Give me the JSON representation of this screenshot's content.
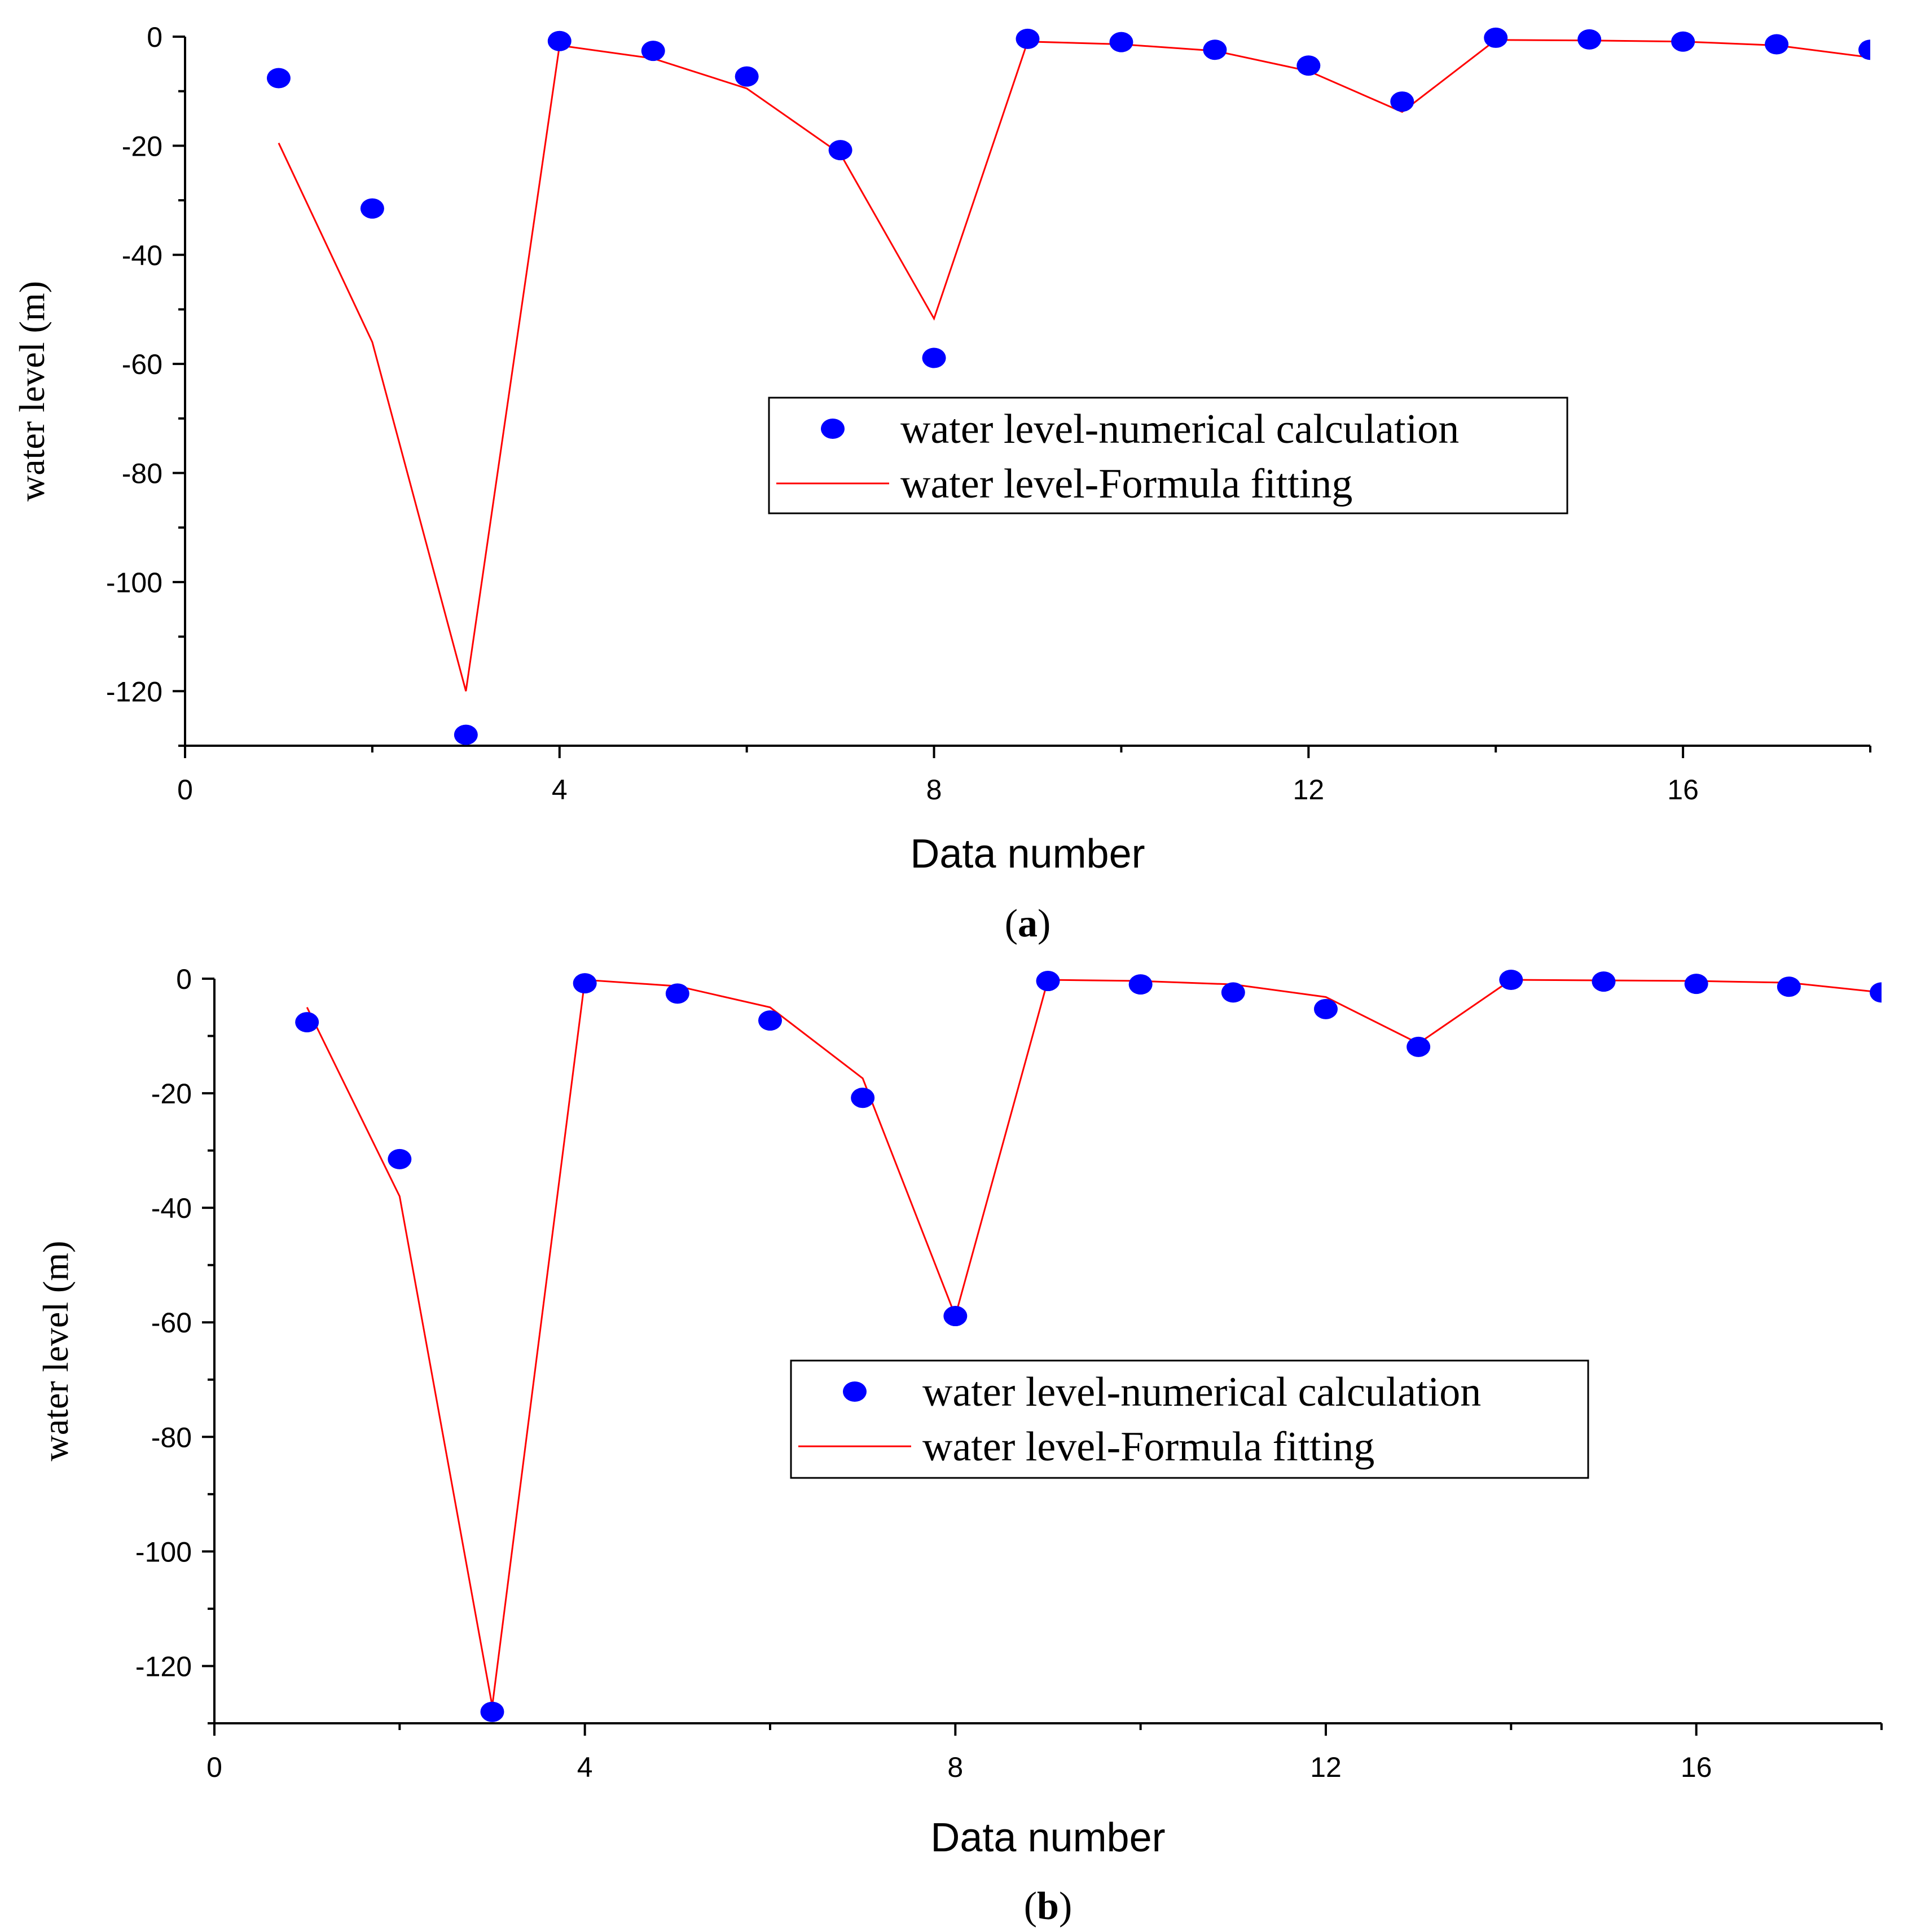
{
  "colors": {
    "points": "#0000ff",
    "line": "#ff0000",
    "axes": "#000000"
  },
  "chart_data": [
    {
      "type": "scatter",
      "panel": "a",
      "xlabel": "Data number",
      "ylabel": "water level (m)",
      "xlim": [
        0,
        18
      ],
      "ylim": [
        -130,
        0
      ],
      "xticks": [
        "0",
        "4",
        "8",
        "12",
        "16"
      ],
      "yticks": [
        "0",
        "-20",
        "-40",
        "-60",
        "-80",
        "-100",
        "-120"
      ],
      "legend": {
        "placement": "center-right",
        "scatter_label": "water level-numerical calculation",
        "line_label": "water level-Formula fitting"
      },
      "series": [
        {
          "name": "water level-numerical calculation",
          "kind": "scatter",
          "x": [
            1,
            2,
            3,
            4,
            5,
            6,
            7,
            8,
            9,
            10,
            11,
            12,
            13,
            14,
            15,
            16,
            17,
            18
          ],
          "y": [
            -7.6,
            -31.5,
            -128,
            -0.8,
            -2.6,
            -7.3,
            -20.8,
            -58.9,
            -0.4,
            -1,
            -2.4,
            -5.3,
            -11.9,
            -0.2,
            -0.5,
            -0.9,
            -1.4,
            -2.4
          ]
        },
        {
          "name": "water level-Formula fitting",
          "kind": "line",
          "x": [
            1,
            2,
            3,
            4,
            5,
            6,
            7,
            8,
            9,
            10,
            11,
            12,
            13,
            14,
            15,
            16,
            17,
            18
          ],
          "y": [
            -19.5,
            -56,
            -120,
            -1.6,
            -4,
            -9.5,
            -21.5,
            -51.7,
            -0.9,
            -1.4,
            -2.6,
            -6.3,
            -13.8,
            -0.6,
            -0.7,
            -0.9,
            -1.6,
            -3.8
          ]
        }
      ],
      "caption": "a"
    },
    {
      "type": "scatter",
      "panel": "b",
      "xlabel": "Data number",
      "ylabel": "water level (m)",
      "xlim": [
        0,
        18
      ],
      "ylim": [
        -130,
        0
      ],
      "xticks": [
        "0",
        "4",
        "8",
        "12",
        "16"
      ],
      "yticks": [
        "0",
        "-20",
        "-40",
        "-60",
        "-80",
        "-100",
        "-120"
      ],
      "legend": {
        "placement": "center-right",
        "scatter_label": "water level-numerical calculation",
        "line_label": "water level-Formula fitting"
      },
      "series": [
        {
          "name": "water level-numerical calculation",
          "kind": "scatter",
          "x": [
            1,
            2,
            3,
            4,
            5,
            6,
            7,
            8,
            9,
            10,
            11,
            12,
            13,
            14,
            15,
            16,
            17,
            18
          ],
          "y": [
            -7.6,
            -31.5,
            -128,
            -0.8,
            -2.6,
            -7.3,
            -20.8,
            -58.9,
            -0.4,
            -1,
            -2.4,
            -5.3,
            -11.9,
            -0.2,
            -0.5,
            -0.9,
            -1.4,
            -2.4
          ]
        },
        {
          "name": "water level-Formula fitting",
          "kind": "line",
          "x": [
            1,
            2,
            3,
            4,
            5,
            6,
            7,
            8,
            9,
            10,
            11,
            12,
            13,
            14,
            15,
            16,
            17,
            18
          ],
          "y": [
            -5,
            -38,
            -127,
            -0.2,
            -1.3,
            -5,
            -17.4,
            -58.9,
            -0.2,
            -0.4,
            -1,
            -3.2,
            -11.3,
            -0.2,
            -0.3,
            -0.4,
            -0.7,
            -2.4
          ]
        }
      ],
      "caption": "b"
    }
  ]
}
